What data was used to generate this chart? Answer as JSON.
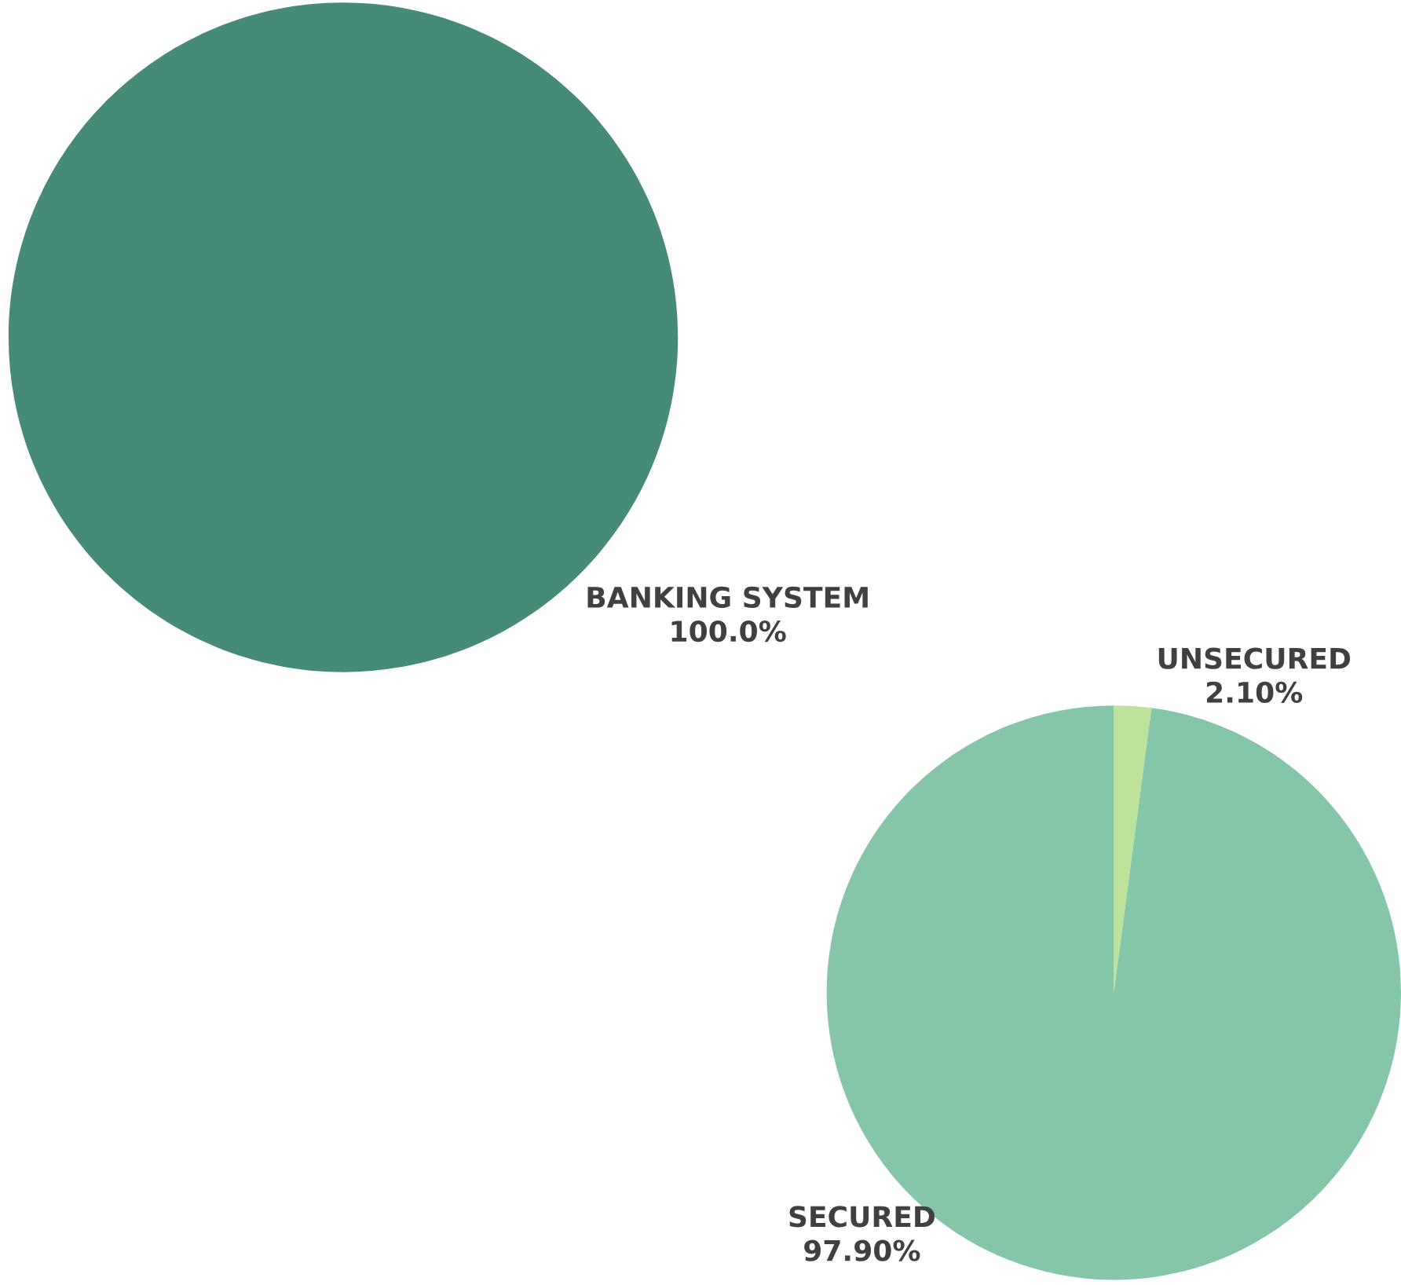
{
  "chart_data": [
    {
      "type": "pie",
      "categories": [
        "BANKING SYSTEM"
      ],
      "values": [
        100.0
      ],
      "colors": [
        "#458b77"
      ],
      "value_labels": [
        "100.0%"
      ]
    },
    {
      "type": "pie",
      "categories": [
        "UNSECURED",
        "SECURED"
      ],
      "values": [
        2.1,
        97.9
      ],
      "colors": [
        "#bde39a",
        "#85c6a9"
      ],
      "value_labels": [
        "2.10%",
        "97.90%"
      ]
    }
  ]
}
